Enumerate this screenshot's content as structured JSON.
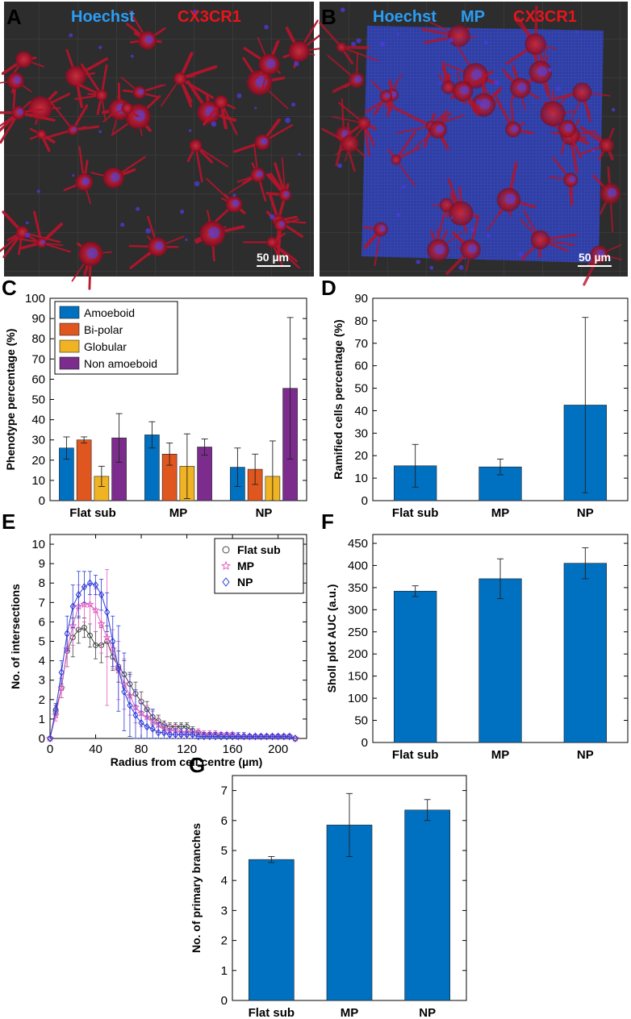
{
  "micrographs": [
    {
      "panel": "A",
      "labels": [
        {
          "text": "Hoechst",
          "color": "#2a9df4"
        },
        {
          "text": "CX3CR1",
          "color": "#e8141b"
        }
      ],
      "scale_bar": "50 µm"
    },
    {
      "panel": "B",
      "labels": [
        {
          "text": "Hoechst",
          "color": "#2a9df4"
        },
        {
          "text": "MP",
          "color": "#2a9df4"
        },
        {
          "text": "CX3CR1",
          "color": "#e8141b"
        }
      ],
      "scale_bar": "50 µm"
    }
  ],
  "chart_data": [
    {
      "panel": "C",
      "type": "bar",
      "ylabel": "Phenotype percentage (%)",
      "ylim": [
        0,
        100
      ],
      "yticks": [
        0,
        10,
        20,
        30,
        40,
        50,
        60,
        70,
        80,
        90,
        100
      ],
      "categories": [
        "Flat sub",
        "MP",
        "NP"
      ],
      "legend_position": "top-left",
      "series": [
        {
          "name": "Amoeboid",
          "color": "#0070c0",
          "values": [
            26,
            32.5,
            16.5
          ],
          "errors": [
            5.5,
            6.5,
            9.5
          ]
        },
        {
          "name": "Bi-polar",
          "color": "#e0561f",
          "values": [
            30,
            23,
            15.5
          ],
          "errors": [
            1.5,
            5.5,
            7.5
          ]
        },
        {
          "name": "Globular",
          "color": "#f0b323",
          "values": [
            12,
            17,
            12
          ],
          "errors": [
            5,
            16,
            17.5
          ]
        },
        {
          "name": "Non amoeboid",
          "color": "#7b2c8c",
          "values": [
            31,
            26.5,
            55.5
          ],
          "errors": [
            12,
            4,
            35
          ]
        }
      ]
    },
    {
      "panel": "D",
      "type": "bar",
      "ylabel": "Ramified cells percentage (%)",
      "ylim": [
        0,
        90
      ],
      "yticks": [
        0,
        10,
        20,
        30,
        40,
        50,
        60,
        70,
        80,
        90
      ],
      "categories": [
        "Flat sub",
        "MP",
        "NP"
      ],
      "color": "#0070c0",
      "values": [
        15.5,
        15,
        42.5
      ],
      "errors": [
        9.5,
        3.5,
        39
      ]
    },
    {
      "panel": "E",
      "type": "line",
      "xlabel": "Radius from cell centre (µm)",
      "ylabel": "No. of intersections",
      "xlim": [
        0,
        225
      ],
      "ylim": [
        0,
        10.5
      ],
      "xticks": [
        0,
        40,
        80,
        120,
        160,
        200
      ],
      "yticks": [
        0,
        1,
        2,
        3,
        4,
        5,
        6,
        7,
        8,
        9,
        10
      ],
      "legend_position": "top-right",
      "series": [
        {
          "name": "Flat sub",
          "color": "#444444",
          "marker": "circle",
          "x": [
            0,
            5,
            10,
            15,
            20,
            25,
            30,
            35,
            40,
            45,
            50,
            55,
            60,
            65,
            70,
            75,
            80,
            85,
            90,
            95,
            100,
            105,
            110,
            115,
            120,
            125,
            130,
            135,
            140,
            145,
            150,
            155,
            160,
            165,
            170,
            175,
            180,
            185,
            190,
            195,
            200,
            205,
            210,
            215
          ],
          "y": [
            0,
            1.4,
            2.6,
            4.5,
            5.2,
            5.6,
            5.7,
            5.3,
            4.8,
            4.8,
            5.0,
            4.2,
            3.7,
            3.3,
            2.8,
            2.3,
            1.9,
            1.5,
            1.1,
            0.9,
            0.7,
            0.6,
            0.6,
            0.6,
            0.6,
            0.4,
            0.3,
            0.2,
            0.2,
            0.2,
            0.1,
            0.1,
            0.1,
            0.1,
            0.1,
            0.1,
            0.1,
            0.1,
            0.1,
            0.1,
            0.1,
            0.1,
            0.1,
            0
          ],
          "err": [
            0,
            0.3,
            0.5,
            0.8,
            1.0,
            0.7,
            0.5,
            0.6,
            0.7,
            0.9,
            0.8,
            0.7,
            0.8,
            0.7,
            0.6,
            0.6,
            0.5,
            0.4,
            0.4,
            0.3,
            0.2,
            0.2,
            0.2,
            0.2,
            0.2,
            0.2,
            0.1,
            0.1,
            0.1,
            0.1,
            0.1,
            0.1,
            0.1,
            0.1,
            0.1,
            0.1,
            0.1,
            0.1,
            0.1,
            0.1,
            0.1,
            0.1,
            0.1,
            0
          ]
        },
        {
          "name": "MP",
          "color": "#e060c0",
          "marker": "star",
          "x": [
            0,
            5,
            10,
            15,
            20,
            25,
            30,
            35,
            40,
            45,
            50,
            55,
            60,
            65,
            70,
            75,
            80,
            85,
            90,
            95,
            100,
            105,
            110,
            115,
            120,
            125,
            130,
            135,
            140,
            145,
            150,
            155,
            160,
            165,
            170,
            175,
            180,
            185,
            190,
            195,
            200,
            205,
            210,
            215
          ],
          "y": [
            0,
            1.2,
            2.6,
            4.6,
            5.8,
            6.8,
            6.9,
            6.9,
            6.6,
            5.9,
            5.2,
            4.6,
            3.5,
            2.8,
            2.2,
            1.6,
            1.3,
            1.1,
            0.9,
            0.7,
            0.5,
            0.4,
            0.4,
            0.3,
            0.3,
            0.3,
            0.3,
            0.2,
            0.2,
            0.2,
            0.2,
            0.2,
            0.2,
            0.1,
            0.1,
            0.1,
            0.1,
            0.1,
            0.1,
            0.1,
            0.1,
            0.1,
            0.1,
            0
          ],
          "err": [
            0,
            0.3,
            0.5,
            0.9,
            1.0,
            1.1,
            0.9,
            1.0,
            1.1,
            1.5,
            3.5,
            1.0,
            1.5,
            1.3,
            1.0,
            0.8,
            0.7,
            0.6,
            0.5,
            0.4,
            0.3,
            0.3,
            0.3,
            0.2,
            0.2,
            0.2,
            0.2,
            0.2,
            0.2,
            0.2,
            0.1,
            0.1,
            0.1,
            0.1,
            0.1,
            0.1,
            0.1,
            0.1,
            0.1,
            0.1,
            0.1,
            0.1,
            0.1,
            0
          ]
        },
        {
          "name": "NP",
          "color": "#2a3cdc",
          "marker": "diamond",
          "x": [
            0,
            5,
            10,
            15,
            20,
            25,
            30,
            35,
            40,
            45,
            50,
            55,
            60,
            65,
            70,
            75,
            80,
            85,
            90,
            95,
            100,
            105,
            110,
            115,
            120,
            125,
            130,
            135,
            140,
            145,
            150,
            155,
            160,
            165,
            170,
            175,
            180,
            185,
            190,
            195,
            200,
            205,
            210,
            215
          ],
          "y": [
            0,
            1.5,
            3.4,
            5.4,
            6.8,
            7.4,
            7.8,
            8.0,
            7.9,
            7.4,
            6.5,
            5.0,
            3.6,
            2.4,
            1.7,
            1.2,
            0.8,
            0.6,
            0.5,
            0.3,
            0.3,
            0.2,
            0.2,
            0.2,
            0.2,
            0.2,
            0.1,
            0.1,
            0.1,
            0.1,
            0.1,
            0.1,
            0.1,
            0.1,
            0.1,
            0.1,
            0.1,
            0.1,
            0.1,
            0.1,
            0.1,
            0.1,
            0.1,
            0
          ],
          "err": [
            0,
            0.3,
            0.6,
            0.9,
            1.1,
            1.2,
            0.8,
            0.6,
            0.5,
            0.8,
            1.0,
            1.3,
            2.2,
            2.0,
            1.6,
            1.3,
            1.0,
            0.9,
            1.0,
            0.5,
            0.4,
            0.3,
            0.3,
            0.3,
            0.3,
            0.3,
            0.2,
            0.2,
            0.2,
            0.2,
            0.2,
            0.2,
            0.2,
            0.2,
            0.2,
            0.1,
            0.1,
            0.1,
            0.1,
            0.1,
            0.1,
            0.1,
            0.1,
            0
          ]
        }
      ]
    },
    {
      "panel": "F",
      "type": "bar",
      "ylabel": "Sholl plot AUC (a.u.)",
      "ylim": [
        0,
        470
      ],
      "yticks": [
        0,
        50,
        100,
        150,
        200,
        250,
        300,
        350,
        400,
        450
      ],
      "categories": [
        "Flat sub",
        "MP",
        "NP"
      ],
      "color": "#0070c0",
      "values": [
        342,
        370,
        405
      ],
      "errors": [
        12,
        45,
        35
      ]
    },
    {
      "panel": "G",
      "type": "bar",
      "ylabel": "No. of primary branches",
      "ylim": [
        0,
        7.5
      ],
      "yticks": [
        0,
        1,
        2,
        3,
        4,
        5,
        6,
        7
      ],
      "categories": [
        "Flat sub",
        "MP",
        "NP"
      ],
      "color": "#0070c0",
      "values": [
        4.7,
        5.85,
        6.35
      ],
      "errors": [
        0.1,
        1.05,
        0.35
      ]
    }
  ]
}
